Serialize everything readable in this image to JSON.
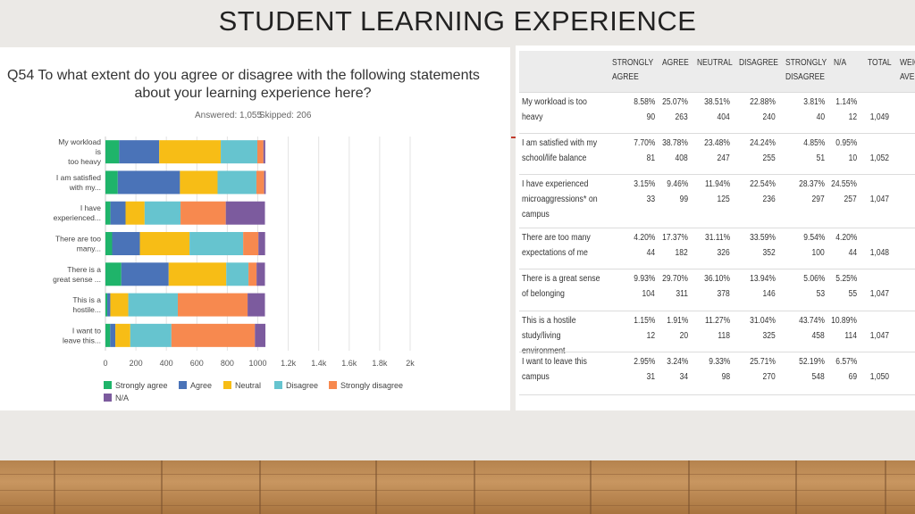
{
  "slide": {
    "title": "STUDENT LEARNING EXPERIENCE"
  },
  "question": {
    "line1": "Q54 To what extent do you agree or disagree with the following statements",
    "line2": "about your learning experience here?",
    "answered": "Answered: 1,055",
    "skipped": "Skipped: 206"
  },
  "chart_data": {
    "type": "bar",
    "orientation": "horizontal",
    "stacked": true,
    "categories": [
      [
        "My workload",
        "is",
        "too heavy"
      ],
      [
        "I am satisfied",
        "with my..."
      ],
      [
        "I have",
        "experienced..."
      ],
      [
        "There are too",
        "many..."
      ],
      [
        "There is a",
        "great sense ..."
      ],
      [
        "This is a",
        "hostile..."
      ],
      [
        "I want to",
        "leave this..."
      ]
    ],
    "xlim": [
      0,
      2000
    ],
    "xticks": [
      "0",
      "200",
      "400",
      "600",
      "800",
      "1000",
      "1.2k",
      "1.4k",
      "1.6k",
      "1.8k",
      "2k"
    ],
    "grid": true,
    "legend_position": "bottom",
    "series": [
      {
        "name": "Strongly agree",
        "color": "#1fb46a",
        "values": [
          90,
          81,
          33,
          44,
          104,
          12,
          31
        ]
      },
      {
        "name": "Agree",
        "color": "#4a73b8",
        "values": [
          263,
          408,
          99,
          182,
          311,
          20,
          34
        ]
      },
      {
        "name": "Neutral",
        "color": "#f7bd16",
        "values": [
          404,
          247,
          125,
          326,
          378,
          118,
          98
        ]
      },
      {
        "name": "Disagree",
        "color": "#66c4cf",
        "values": [
          240,
          255,
          236,
          352,
          146,
          325,
          270
        ]
      },
      {
        "name": "Strongly disagree",
        "color": "#f7894f",
        "values": [
          40,
          51,
          297,
          100,
          53,
          458,
          548
        ]
      },
      {
        "name": "N/A",
        "color": "#7c5b9e",
        "values": [
          12,
          10,
          257,
          44,
          55,
          114,
          69
        ]
      }
    ]
  },
  "table": {
    "headers": [
      [
        "STRONGLY",
        "AGREE"
      ],
      [
        "AGREE"
      ],
      [
        "NEUTRAL"
      ],
      [
        "DISAGREE"
      ],
      [
        "STRONGLY",
        "DISAGREE"
      ],
      [
        "N/A"
      ],
      [
        "TOTAL"
      ],
      [
        "WEIG",
        "AVER"
      ]
    ],
    "rows": [
      {
        "label": "My workload is too heavy",
        "pct": [
          "8.58%",
          "25.07%",
          "38.51%",
          "22.88%",
          "3.81%",
          "1.14%"
        ],
        "cnt": [
          "90",
          "263",
          "404",
          "240",
          "40",
          "12"
        ],
        "total": "1,049"
      },
      {
        "label": "I am satisfied with my school/life balance",
        "pct": [
          "7.70%",
          "38.78%",
          "23.48%",
          "24.24%",
          "4.85%",
          "0.95%"
        ],
        "cnt": [
          "81",
          "408",
          "247",
          "255",
          "51",
          "10"
        ],
        "total": "1,052"
      },
      {
        "label": "I have experienced microaggressions* on campus",
        "pct": [
          "3.15%",
          "9.46%",
          "11.94%",
          "22.54%",
          "28.37%",
          "24.55%"
        ],
        "cnt": [
          "33",
          "99",
          "125",
          "236",
          "297",
          "257"
        ],
        "total": "1,047"
      },
      {
        "label": "There are too many expectations of me",
        "pct": [
          "4.20%",
          "17.37%",
          "31.11%",
          "33.59%",
          "9.54%",
          "4.20%"
        ],
        "cnt": [
          "44",
          "182",
          "326",
          "352",
          "100",
          "44"
        ],
        "total": "1,048"
      },
      {
        "label": "There is a great sense of belonging",
        "pct": [
          "9.93%",
          "29.70%",
          "36.10%",
          "13.94%",
          "5.06%",
          "5.25%"
        ],
        "cnt": [
          "104",
          "311",
          "378",
          "146",
          "53",
          "55"
        ],
        "total": "1,047"
      },
      {
        "label": "This is a hostile study/living environment",
        "pct": [
          "1.15%",
          "1.91%",
          "11.27%",
          "31.04%",
          "43.74%",
          "10.89%"
        ],
        "cnt": [
          "12",
          "20",
          "118",
          "325",
          "458",
          "114"
        ],
        "total": "1,047"
      },
      {
        "label": "I want to leave this campus",
        "pct": [
          "2.95%",
          "3.24%",
          "9.33%",
          "25.71%",
          "52.19%",
          "6.57%"
        ],
        "cnt": [
          "31",
          "34",
          "98",
          "270",
          "548",
          "69"
        ],
        "total": "1,050"
      }
    ]
  }
}
